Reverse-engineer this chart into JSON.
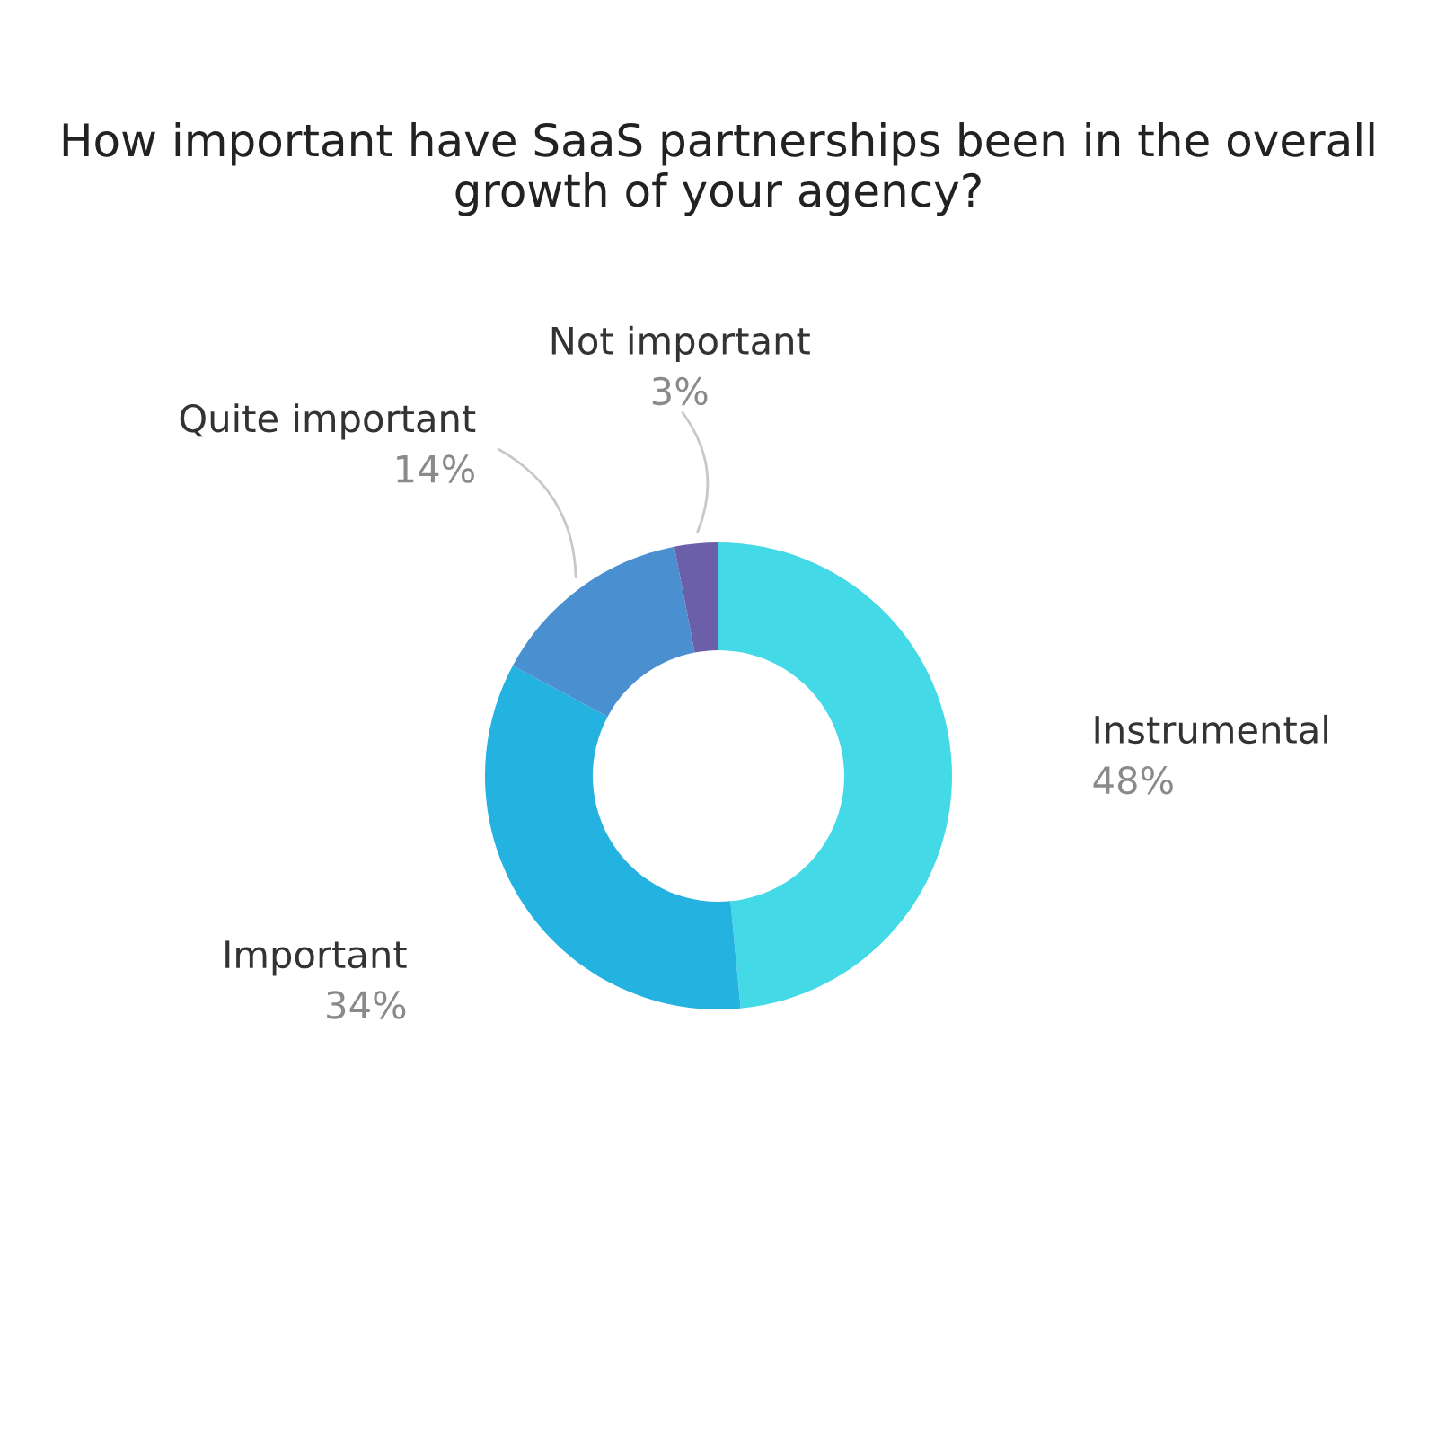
{
  "chart_data": {
    "type": "donut",
    "title": "How important have SaaS partnerships been in the overall growth of your agency?",
    "categories": [
      "Instrumental",
      "Important",
      "Quite important",
      "Not important"
    ],
    "values": [
      48,
      34,
      14,
      3
    ],
    "value_labels": [
      "48%",
      "34%",
      "14%",
      "3%"
    ],
    "colors": [
      "#44d9e6",
      "#24b3e0",
      "#4a8fd0",
      "#6a5fa8"
    ],
    "legend": false
  }
}
